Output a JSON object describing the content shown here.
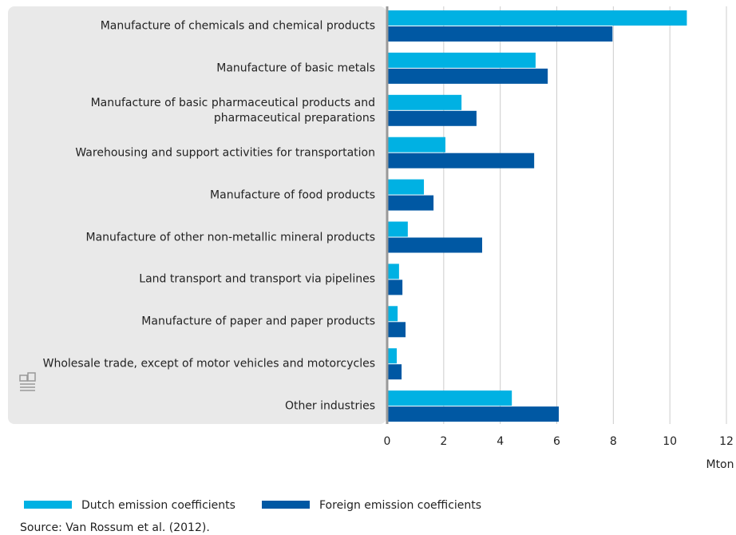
{
  "chart_data": {
    "type": "hbar",
    "categories": [
      "Manufacture of chemicals and chemical products",
      "Manufacture of basic metals",
      "Manufacture of basic pharmaceutical products and\npharmaceutical preparations",
      "Warehousing and support activities for transportation",
      "Manufacture of food products",
      "Manufacture of other non-metallic mineral products",
      "Land transport and transport via pipelines",
      "Manufacture of paper and paper products",
      "Wholesale trade, except of motor vehicles and motorcycles",
      "Other industries"
    ],
    "series": [
      {
        "name": "Dutch emission coefficients",
        "color": "#00b1e3",
        "values": [
          10.6,
          5.25,
          2.63,
          2.06,
          1.3,
          0.73,
          0.42,
          0.37,
          0.34,
          4.41
        ]
      },
      {
        "name": "Foreign emission coefficients",
        "color": "#0058a3",
        "values": [
          7.97,
          5.68,
          3.16,
          5.2,
          1.64,
          3.36,
          0.54,
          0.65,
          0.51,
          6.07
        ]
      }
    ],
    "xlim": [
      0,
      12
    ],
    "xticks": [
      0,
      2,
      4,
      6,
      8,
      10,
      12
    ],
    "xlabel": "Mton",
    "grid": true,
    "source": "Source: Van Rossum et al. (2012)."
  }
}
